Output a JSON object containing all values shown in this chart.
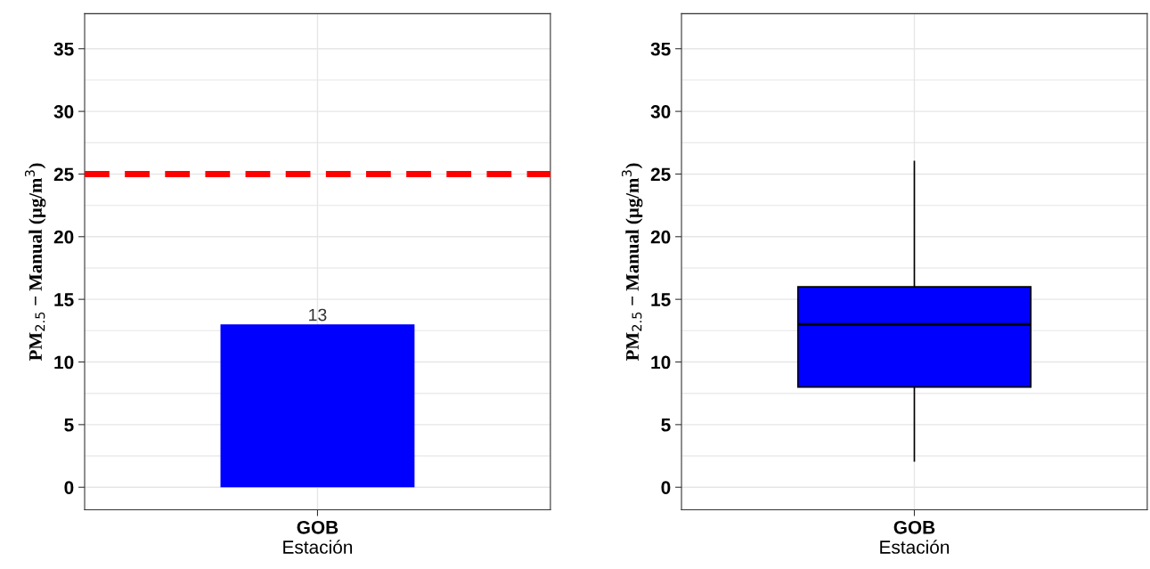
{
  "chart_data": [
    {
      "type": "bar",
      "categories": [
        "GOB"
      ],
      "values": [
        13
      ],
      "color": "#0000ff",
      "data_labels": true,
      "xlabel": "Estación",
      "ylabel": "PM$_{2.5}$ − Manual (µg/m$^{3}$)",
      "ylim": [
        -1.8,
        37.8
      ],
      "yticks": [
        0,
        5,
        10,
        15,
        20,
        25,
        30,
        35
      ],
      "grid": true,
      "ref_lines": [
        {
          "axis": "y",
          "value": 25,
          "color": "#ff0000",
          "line_style": "dashed"
        }
      ]
    },
    {
      "type": "box",
      "categories": [
        "GOB"
      ],
      "color": "#0000ff",
      "xlabel": "Estación",
      "ylabel": "PM$_{2.5}$ − Manual (µg/m$^{3}$)",
      "ylim": [
        -1.8,
        37.8
      ],
      "yticks": [
        0,
        5,
        10,
        15,
        20,
        25,
        30,
        35
      ],
      "grid": true,
      "boxes": [
        {
          "low": 2.1,
          "q1": 8,
          "median": 13,
          "q3": 16,
          "high": 26
        }
      ]
    }
  ]
}
